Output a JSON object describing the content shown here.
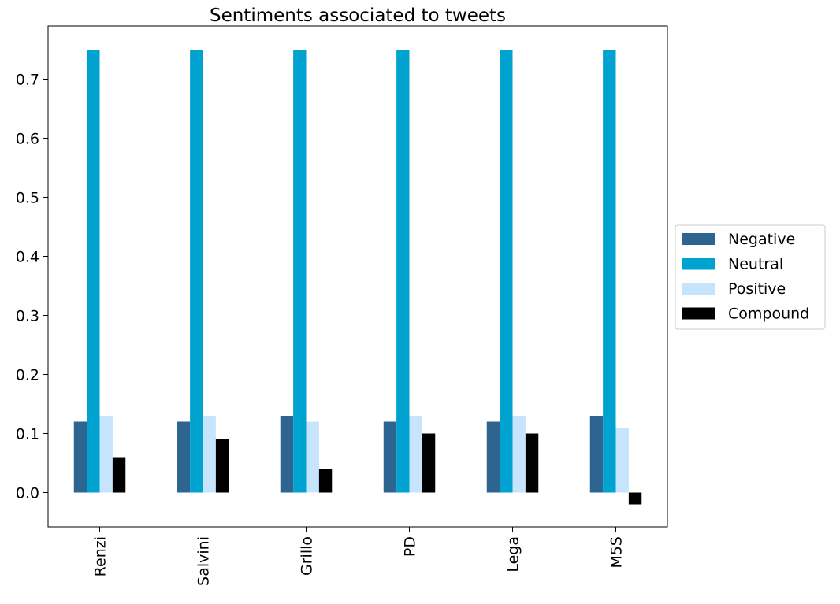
{
  "chart_data": {
    "type": "bar",
    "title": "Sentiments associated to tweets",
    "xlabel": "",
    "ylabel": "",
    "categories": [
      "Renzi",
      "Salvini",
      "Grillo",
      "PD",
      "Lega",
      "M5S"
    ],
    "series": [
      {
        "name": "Negative",
        "color": "#2e6590",
        "values": [
          0.12,
          0.12,
          0.13,
          0.12,
          0.12,
          0.13
        ]
      },
      {
        "name": "Neutral",
        "color": "#00a2cf",
        "values": [
          0.75,
          0.75,
          0.75,
          0.75,
          0.75,
          0.75
        ]
      },
      {
        "name": "Positive",
        "color": "#c6e4fc",
        "values": [
          0.13,
          0.13,
          0.12,
          0.13,
          0.13,
          0.11
        ]
      },
      {
        "name": "Compound",
        "color": "#000000",
        "values": [
          0.06,
          0.09,
          0.04,
          0.1,
          0.1,
          -0.02
        ]
      }
    ],
    "ylim": [
      -0.058,
      0.79
    ],
    "yticks": [
      0.0,
      0.1,
      0.2,
      0.3,
      0.4,
      0.5,
      0.6,
      0.7
    ],
    "ytick_labels": [
      "0.0",
      "0.1",
      "0.2",
      "0.3",
      "0.4",
      "0.5",
      "0.6",
      "0.7"
    ],
    "grid": false,
    "legend_position": "center-right-outside"
  }
}
